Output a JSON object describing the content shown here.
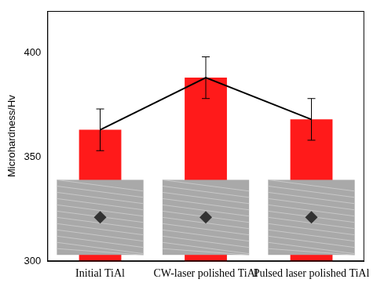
{
  "chart_data": {
    "type": "bar",
    "y_label": "Microhardness/Hv",
    "categories": [
      "Initial TiAl",
      "CW-laser polished TiAl",
      "Pulsed laser polished TiAl"
    ],
    "series": [
      {
        "type": "bar",
        "color": "#ff1a1a",
        "values": [
          363,
          388,
          368
        ],
        "errors": [
          10,
          10,
          10
        ]
      },
      {
        "type": "line",
        "color": "#000000",
        "values": [
          363,
          388,
          368
        ]
      }
    ],
    "ylim": [
      300,
      420
    ],
    "yticks": [
      300,
      350,
      400
    ],
    "grid": false
  }
}
